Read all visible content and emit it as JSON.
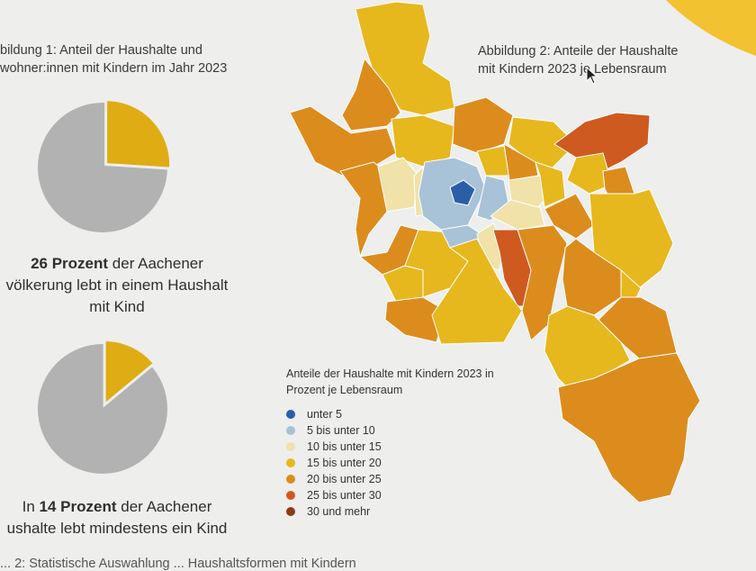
{
  "caption1": {
    "line1": "bildung 1: Anteil der Haushalte und",
    "line2": "wohner:innen mit Kindern im Jahr 2023"
  },
  "caption2": {
    "line1": "Abbildung 2: Anteile der Haushalte",
    "line2": "mit Kindern 2023 je Lebensraum"
  },
  "stat1": {
    "bold": "26 Prozent",
    "rest1": " der Aachener",
    "line2": "völkerung lebt in einem Haushalt",
    "line3": "mit Kind"
  },
  "stat2": {
    "pre": "In ",
    "bold": "14 Prozent",
    "rest1": " der Aachener",
    "line2": "ushalte lebt mindestens ein Kind"
  },
  "pies": [
    {
      "share_percent": 26,
      "slice_color": "#e0ac14",
      "rest_color": "#b2b2b2"
    },
    {
      "share_percent": 14,
      "slice_color": "#e0ac14",
      "rest_color": "#b2b2b2"
    }
  ],
  "legend": {
    "title_line1": "Anteile der Haushalte mit Kindern 2023 in",
    "title_line2": "Prozent je Lebensraum",
    "items": [
      {
        "label": "unter 5",
        "color": "#2a5fa8"
      },
      {
        "label": "5 bis unter 10",
        "color": "#a8c2d8"
      },
      {
        "label": "10 bis unter 15",
        "color": "#f0e2a8"
      },
      {
        "label": "15 bis unter 20",
        "color": "#e6b81e"
      },
      {
        "label": "20 bis unter 25",
        "color": "#dc8c1c"
      },
      {
        "label": "25 bis unter 30",
        "color": "#cf5a20"
      },
      {
        "label": "30 und mehr",
        "color": "#8e3a1e"
      }
    ]
  },
  "footer": "... 2: Statistische Auswahlung ... Haushaltsformen mit Kindern",
  "accent_color": "#f1c232"
}
